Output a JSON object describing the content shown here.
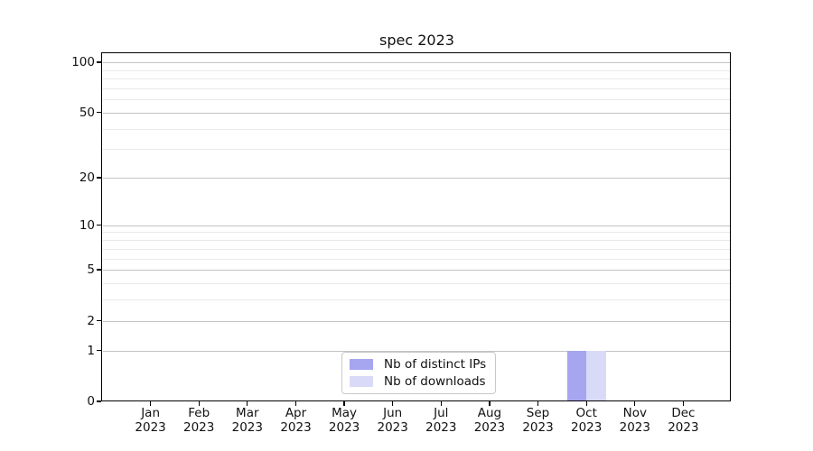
{
  "chart_data": {
    "type": "bar",
    "title": "spec 2023",
    "categories": [
      "Jan 2023",
      "Feb 2023",
      "Mar 2023",
      "Apr 2023",
      "May 2023",
      "Jun 2023",
      "Jul 2023",
      "Aug 2023",
      "Sep 2023",
      "Oct 2023",
      "Nov 2023",
      "Dec 2023"
    ],
    "x_tick_labels": [
      [
        "Jan",
        "2023"
      ],
      [
        "Feb",
        "2023"
      ],
      [
        "Mar",
        "2023"
      ],
      [
        "Apr",
        "2023"
      ],
      [
        "May",
        "2023"
      ],
      [
        "Jun",
        "2023"
      ],
      [
        "Jul",
        "2023"
      ],
      [
        "Aug",
        "2023"
      ],
      [
        "Sep",
        "2023"
      ],
      [
        "Oct",
        "2023"
      ],
      [
        "Nov",
        "2023"
      ],
      [
        "Dec",
        "2023"
      ]
    ],
    "series": [
      {
        "name": "Nb of distinct IPs",
        "color": "#a5a5f0",
        "values": [
          0,
          0,
          0,
          0,
          0,
          0,
          0,
          0,
          0,
          1,
          0,
          0
        ]
      },
      {
        "name": "Nb of downloads",
        "color": "#d9d9f8",
        "values": [
          0,
          0,
          0,
          0,
          0,
          0,
          0,
          0,
          0,
          1,
          0,
          0
        ]
      }
    ],
    "y_axis": {
      "scale": "log1p",
      "ticks": [
        0,
        1,
        2,
        5,
        10,
        20,
        50,
        100
      ],
      "tick_labels": [
        "0",
        "1",
        "2",
        "5",
        "10",
        "20",
        "50",
        "100"
      ],
      "minor_gridlines": [
        3,
        4,
        6,
        7,
        8,
        9,
        30,
        40,
        60,
        70,
        80,
        90
      ],
      "ylim": [
        0,
        113
      ]
    },
    "xlabel": "",
    "ylabel": "",
    "grid": "horizontal major and minor",
    "legend": {
      "position": "lower center inside plot"
    }
  }
}
